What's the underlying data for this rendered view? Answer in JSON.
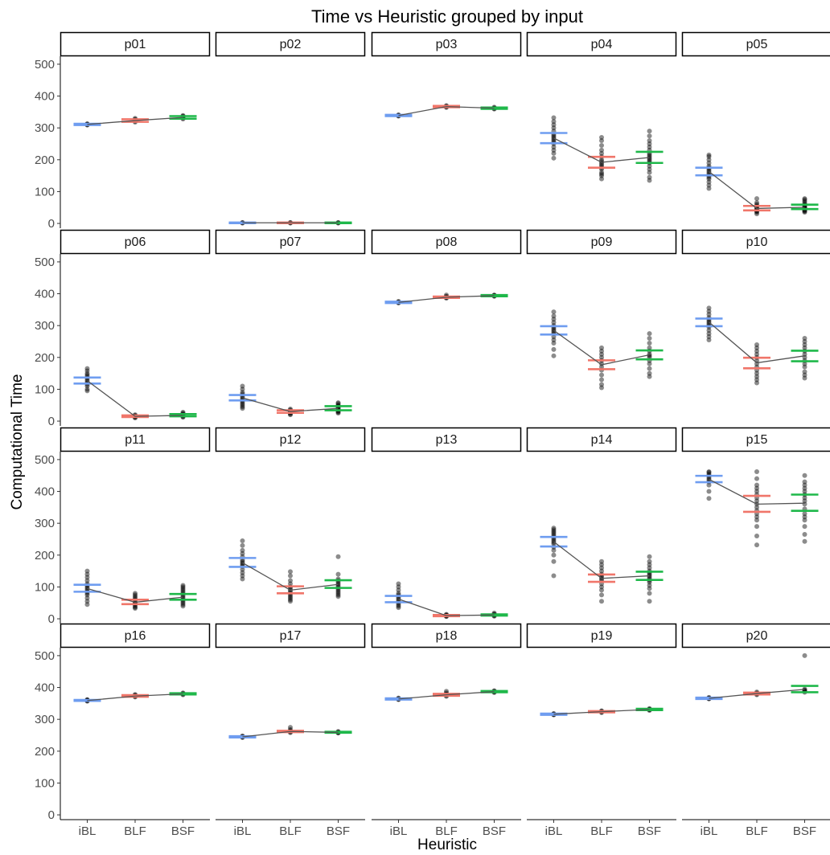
{
  "chart_data": {
    "type": "scatter",
    "title": "Time vs Heuristic grouped by input",
    "xlabel": "Heuristic",
    "ylabel": "Computational Time",
    "categories": [
      "iBL",
      "BLF",
      "BSF"
    ],
    "colors": {
      "iBL": "#6f9df0",
      "BLF": "#f0766a",
      "BSF": "#1fb84a"
    },
    "ylim": [
      -15,
      525
    ],
    "yticks": [
      "0",
      "100",
      "200",
      "300",
      "400",
      "500"
    ],
    "grid": false,
    "legend": "none",
    "panels": [
      {
        "name": "p01",
        "means": [
          311,
          323,
          333
        ],
        "ci": [
          [
            309,
            313
          ],
          [
            319,
            327
          ],
          [
            329,
            337
          ]
        ],
        "points": [
          [
            309,
            310,
            311,
            312,
            313
          ],
          [
            318,
            321,
            323,
            325,
            327,
            330
          ],
          [
            328,
            331,
            333,
            335,
            337,
            339
          ]
        ]
      },
      {
        "name": "p02",
        "means": [
          2,
          2,
          2
        ],
        "ci": [
          [
            1,
            3
          ],
          [
            1,
            3
          ],
          [
            1,
            3
          ]
        ],
        "points": [
          [
            1,
            2,
            3
          ],
          [
            1,
            2,
            3
          ],
          [
            1,
            2,
            3
          ]
        ]
      },
      {
        "name": "p03",
        "means": [
          339,
          367,
          362
        ],
        "ci": [
          [
            337,
            341
          ],
          [
            365,
            369
          ],
          [
            360,
            364
          ]
        ],
        "points": [
          [
            337,
            338,
            339,
            340,
            341
          ],
          [
            364,
            366,
            367,
            368,
            370
          ],
          [
            359,
            361,
            362,
            363,
            365
          ]
        ]
      },
      {
        "name": "p04",
        "means": [
          268,
          192,
          207
        ],
        "ci": [
          [
            252,
            284
          ],
          [
            175,
            209
          ],
          [
            190,
            225
          ]
        ],
        "points": [
          [
            205,
            220,
            230,
            240,
            250,
            255,
            260,
            265,
            270,
            275,
            280,
            290,
            300,
            310,
            320,
            332
          ],
          [
            140,
            150,
            155,
            160,
            170,
            175,
            180,
            185,
            190,
            195,
            200,
            210,
            220,
            230,
            245,
            260,
            270
          ],
          [
            135,
            145,
            160,
            170,
            180,
            190,
            195,
            200,
            205,
            210,
            215,
            220,
            230,
            240,
            250,
            260,
            275,
            290
          ]
        ]
      },
      {
        "name": "p05",
        "means": [
          163,
          47,
          51
        ],
        "ci": [
          [
            151,
            175
          ],
          [
            41,
            55
          ],
          [
            45,
            59
          ]
        ],
        "points": [
          [
            110,
            120,
            130,
            140,
            145,
            150,
            155,
            160,
            165,
            170,
            175,
            180,
            190,
            200,
            210,
            215
          ],
          [
            30,
            35,
            38,
            40,
            42,
            45,
            48,
            50,
            55,
            60,
            65,
            78
          ],
          [
            35,
            38,
            40,
            42,
            45,
            48,
            50,
            52,
            55,
            58,
            60,
            65,
            70,
            75,
            78
          ]
        ]
      },
      {
        "name": "p06",
        "means": [
          127,
          15,
          18
        ],
        "ci": [
          [
            118,
            137
          ],
          [
            13,
            18
          ],
          [
            15,
            22
          ]
        ],
        "points": [
          [
            95,
            100,
            110,
            115,
            120,
            125,
            130,
            135,
            140,
            145,
            150,
            158,
            165
          ],
          [
            10,
            12,
            13,
            15,
            16,
            18,
            20
          ],
          [
            12,
            14,
            16,
            18,
            20,
            22,
            25,
            28
          ]
        ]
      },
      {
        "name": "p07",
        "means": [
          73,
          30,
          40
        ],
        "ci": [
          [
            65,
            82
          ],
          [
            26,
            34
          ],
          [
            34,
            47
          ]
        ],
        "points": [
          [
            40,
            45,
            50,
            55,
            60,
            65,
            70,
            75,
            80,
            85,
            90,
            100,
            110
          ],
          [
            20,
            22,
            25,
            28,
            30,
            32,
            35,
            38
          ],
          [
            25,
            28,
            30,
            33,
            36,
            40,
            42,
            45,
            48,
            50,
            55,
            58
          ]
        ]
      },
      {
        "name": "p08",
        "means": [
          373,
          389,
          394
        ],
        "ci": [
          [
            371,
            375
          ],
          [
            387,
            391
          ],
          [
            392,
            396
          ]
        ],
        "points": [
          [
            371,
            372,
            373,
            374,
            376
          ],
          [
            386,
            388,
            389,
            390,
            392,
            396
          ],
          [
            392,
            393,
            394,
            395,
            396
          ]
        ]
      },
      {
        "name": "p09",
        "means": [
          285,
          177,
          208
        ],
        "ci": [
          [
            272,
            298
          ],
          [
            163,
            191
          ],
          [
            194,
            222
          ]
        ],
        "points": [
          [
            205,
            225,
            245,
            255,
            265,
            275,
            280,
            285,
            290,
            295,
            300,
            310,
            320,
            330,
            343
          ],
          [
            105,
            115,
            130,
            145,
            160,
            170,
            180,
            190,
            200,
            210,
            220,
            230
          ],
          [
            140,
            150,
            165,
            180,
            190,
            200,
            205,
            210,
            220,
            230,
            245,
            260,
            275
          ]
        ]
      },
      {
        "name": "p10",
        "means": [
          311,
          183,
          205
        ],
        "ci": [
          [
            298,
            322
          ],
          [
            166,
            199
          ],
          [
            188,
            221
          ]
        ],
        "points": [
          [
            255,
            265,
            275,
            285,
            295,
            300,
            305,
            310,
            315,
            320,
            325,
            335,
            345,
            355
          ],
          [
            120,
            130,
            140,
            150,
            160,
            170,
            180,
            190,
            200,
            210,
            220,
            230,
            240
          ],
          [
            135,
            145,
            155,
            170,
            180,
            190,
            200,
            210,
            220,
            230,
            240,
            250,
            260
          ]
        ]
      },
      {
        "name": "p11",
        "means": [
          95,
          52,
          68
        ],
        "ci": [
          [
            85,
            107
          ],
          [
            46,
            60
          ],
          [
            60,
            78
          ]
        ],
        "points": [
          [
            45,
            55,
            65,
            75,
            80,
            85,
            90,
            95,
            100,
            105,
            110,
            120,
            130,
            140,
            150
          ],
          [
            33,
            36,
            40,
            45,
            48,
            50,
            55,
            60,
            65,
            70,
            75,
            80
          ],
          [
            40,
            45,
            50,
            55,
            60,
            65,
            70,
            75,
            80,
            85,
            90,
            95,
            100,
            105
          ]
        ]
      },
      {
        "name": "p12",
        "means": [
          176,
          90,
          108
        ],
        "ci": [
          [
            163,
            191
          ],
          [
            80,
            102
          ],
          [
            97,
            121
          ]
        ],
        "points": [
          [
            125,
            135,
            145,
            155,
            165,
            170,
            175,
            180,
            185,
            195,
            205,
            215,
            230,
            245
          ],
          [
            55,
            60,
            65,
            70,
            75,
            80,
            85,
            90,
            95,
            100,
            110,
            120,
            135,
            148
          ],
          [
            70,
            75,
            80,
            85,
            90,
            95,
            100,
            105,
            110,
            115,
            120,
            125,
            140,
            195
          ]
        ]
      },
      {
        "name": "p13",
        "means": [
          62,
          10,
          12
        ],
        "ci": [
          [
            52,
            72
          ],
          [
            8,
            12
          ],
          [
            10,
            14
          ]
        ],
        "points": [
          [
            35,
            40,
            45,
            50,
            55,
            60,
            65,
            70,
            75,
            80,
            90,
            100,
            110
          ],
          [
            7,
            8,
            9,
            10,
            11,
            12,
            14
          ],
          [
            8,
            10,
            11,
            12,
            13,
            15,
            18
          ]
        ]
      },
      {
        "name": "p14",
        "means": [
          242,
          127,
          135
        ],
        "ci": [
          [
            227,
            257
          ],
          [
            116,
            139
          ],
          [
            122,
            148
          ]
        ],
        "points": [
          [
            135,
            180,
            200,
            215,
            225,
            235,
            240,
            245,
            250,
            255,
            260,
            265,
            270,
            275,
            280,
            285
          ],
          [
            55,
            75,
            90,
            100,
            110,
            120,
            125,
            130,
            135,
            140,
            150,
            160,
            170,
            180
          ],
          [
            55,
            80,
            95,
            105,
            115,
            120,
            125,
            130,
            135,
            140,
            145,
            150,
            160,
            170,
            180,
            195
          ]
        ]
      },
      {
        "name": "p15",
        "means": [
          438,
          360,
          363
        ],
        "ci": [
          [
            429,
            449
          ],
          [
            336,
            386
          ],
          [
            339,
            390
          ]
        ],
        "points": [
          [
            378,
            400,
            420,
            430,
            435,
            440,
            445,
            450,
            455,
            460,
            462
          ],
          [
            232,
            260,
            290,
            310,
            320,
            330,
            340,
            350,
            360,
            370,
            380,
            390,
            400,
            410,
            420,
            440,
            462
          ],
          [
            243,
            265,
            290,
            310,
            320,
            330,
            345,
            360,
            370,
            380,
            390,
            400,
            410,
            420,
            430,
            450
          ]
        ]
      },
      {
        "name": "p16",
        "means": [
          359,
          373,
          380
        ],
        "ci": [
          [
            358,
            361
          ],
          [
            371,
            376
          ],
          [
            378,
            382
          ]
        ],
        "points": [
          [
            357,
            358,
            359,
            360,
            361,
            362
          ],
          [
            370,
            372,
            373,
            374,
            376,
            378
          ],
          [
            377,
            379,
            380,
            381,
            383
          ]
        ]
      },
      {
        "name": "p17",
        "means": [
          245,
          262,
          259
        ],
        "ci": [
          [
            243,
            247
          ],
          [
            260,
            264
          ],
          [
            258,
            261
          ]
        ],
        "points": [
          [
            243,
            244,
            245,
            246,
            248
          ],
          [
            258,
            260,
            262,
            264,
            268,
            275
          ],
          [
            257,
            258,
            259,
            260,
            262
          ]
        ]
      },
      {
        "name": "p18",
        "means": [
          364,
          377,
          387
        ],
        "ci": [
          [
            362,
            366
          ],
          [
            374,
            380
          ],
          [
            385,
            389
          ]
        ],
        "points": [
          [
            362,
            363,
            364,
            365,
            367
          ],
          [
            372,
            375,
            377,
            379,
            383,
            388
          ],
          [
            384,
            386,
            387,
            388,
            390
          ]
        ]
      },
      {
        "name": "p19",
        "means": [
          316,
          324,
          331
        ],
        "ci": [
          [
            314,
            318
          ],
          [
            322,
            326
          ],
          [
            329,
            333
          ]
        ],
        "points": [
          [
            314,
            315,
            316,
            317,
            318
          ],
          [
            321,
            323,
            324,
            325,
            327
          ],
          [
            328,
            330,
            331,
            332,
            334
          ]
        ]
      },
      {
        "name": "p20",
        "means": [
          366,
          381,
          394
        ],
        "ci": [
          [
            364,
            368
          ],
          [
            378,
            384
          ],
          [
            385,
            405
          ]
        ],
        "points": [
          [
            364,
            365,
            366,
            367,
            369
          ],
          [
            377,
            379,
            381,
            383,
            386
          ],
          [
            385,
            388,
            390,
            392,
            395,
            500
          ]
        ]
      }
    ]
  }
}
